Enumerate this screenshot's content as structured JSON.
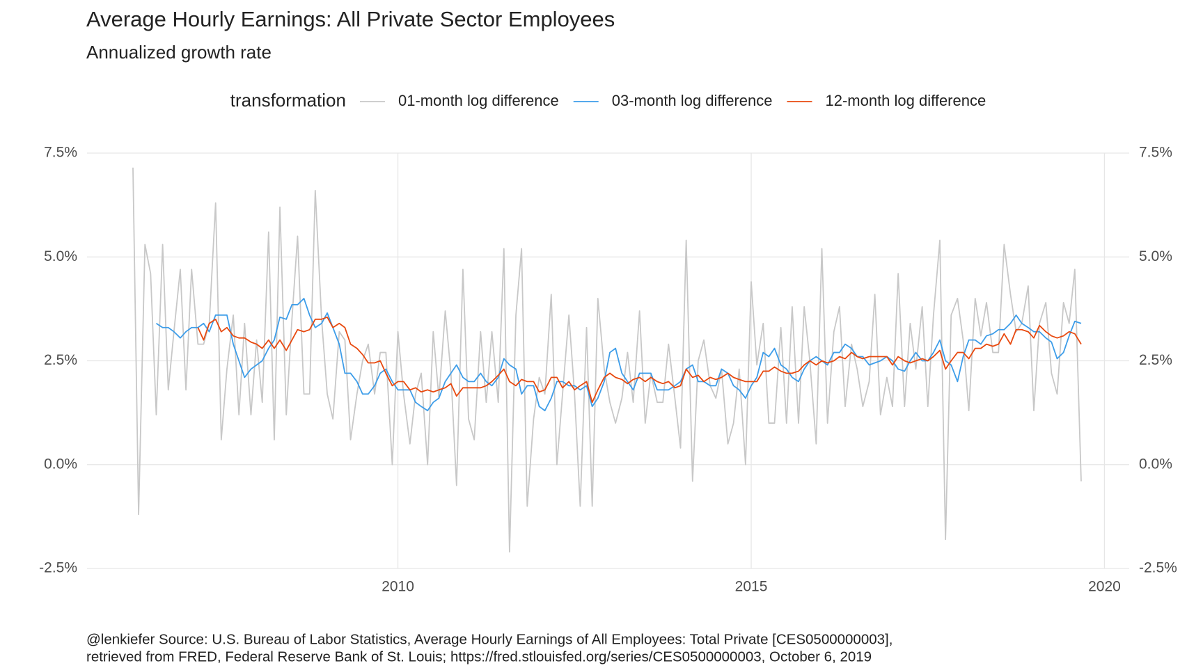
{
  "chart_data": {
    "type": "line",
    "title": "Average Hourly Earnings: All Private Sector Employees",
    "subtitle": "Annualized growth rate",
    "legend_title": "transformation",
    "legend_position": "top",
    "grid": true,
    "caption": [
      "@lenkiefer Source: U.S. Bureau of Labor Statistics, Average Hourly Earnings of All Employees: Total Private [CES0500000003],",
      "retrieved from FRED, Federal Reserve Bank of St. Louis; https://fred.stlouisfed.org/series/CES0500000003, October 6, 2019"
    ],
    "xlim": [
      2005.6,
      2020.35
    ],
    "xticks": [
      2010,
      2015,
      2020
    ],
    "ylim": [
      -2.5,
      7.5
    ],
    "yticks": [
      {
        "value": -2.5,
        "label": "-2.5%"
      },
      {
        "value": 0,
        "label": "0.0%"
      },
      {
        "value": 2.5,
        "label": "2.5%"
      },
      {
        "value": 5,
        "label": "5.0%"
      },
      {
        "value": 7.5,
        "label": "7.5%"
      }
    ],
    "y2lim": [
      -2.5,
      7.5
    ],
    "y2ticks": [
      {
        "value": -2.5,
        "label": "-2.5%"
      },
      {
        "value": 0,
        "label": "0.0%"
      },
      {
        "value": 2.5,
        "label": "2.5%"
      },
      {
        "value": 5,
        "label": "5.0%"
      },
      {
        "value": 7.5,
        "label": "7.5%"
      }
    ],
    "x": [
      2006.25,
      2006.33,
      2006.42,
      2006.5,
      2006.58,
      2006.67,
      2006.75,
      2006.83,
      2006.92,
      2007,
      2007.08,
      2007.17,
      2007.25,
      2007.33,
      2007.42,
      2007.5,
      2007.58,
      2007.67,
      2007.75,
      2007.83,
      2007.92,
      2008,
      2008.08,
      2008.17,
      2008.25,
      2008.33,
      2008.42,
      2008.5,
      2008.58,
      2008.67,
      2008.75,
      2008.83,
      2008.92,
      2009,
      2009.08,
      2009.17,
      2009.25,
      2009.33,
      2009.42,
      2009.5,
      2009.58,
      2009.67,
      2009.75,
      2009.83,
      2009.92,
      2010,
      2010.08,
      2010.17,
      2010.25,
      2010.33,
      2010.42,
      2010.5,
      2010.58,
      2010.67,
      2010.75,
      2010.83,
      2010.92,
      2011,
      2011.08,
      2011.17,
      2011.25,
      2011.33,
      2011.42,
      2011.5,
      2011.58,
      2011.67,
      2011.75,
      2011.83,
      2011.92,
      2012,
      2012.08,
      2012.17,
      2012.25,
      2012.33,
      2012.42,
      2012.5,
      2012.58,
      2012.67,
      2012.75,
      2012.83,
      2012.92,
      2013,
      2013.08,
      2013.17,
      2013.25,
      2013.33,
      2013.42,
      2013.5,
      2013.58,
      2013.67,
      2013.75,
      2013.83,
      2013.92,
      2014,
      2014.08,
      2014.17,
      2014.25,
      2014.33,
      2014.42,
      2014.5,
      2014.58,
      2014.67,
      2014.75,
      2014.83,
      2014.92,
      2015,
      2015.08,
      2015.17,
      2015.25,
      2015.33,
      2015.42,
      2015.5,
      2015.58,
      2015.67,
      2015.75,
      2015.83,
      2015.92,
      2016,
      2016.08,
      2016.17,
      2016.25,
      2016.33,
      2016.42,
      2016.5,
      2016.58,
      2016.67,
      2016.75,
      2016.83,
      2016.92,
      2017,
      2017.08,
      2017.17,
      2017.25,
      2017.33,
      2017.42,
      2017.5,
      2017.58,
      2017.67,
      2017.75,
      2017.83,
      2017.92,
      2018,
      2018.08,
      2018.17,
      2018.25,
      2018.33,
      2018.42,
      2018.5,
      2018.58,
      2018.67,
      2018.75,
      2018.83,
      2018.92,
      2019,
      2019.08,
      2019.17,
      2019.25,
      2019.33,
      2019.42,
      2019.5,
      2019.58,
      2019.67
    ],
    "series": [
      {
        "name": "01-month log difference",
        "color": "#c8c8c8",
        "values": [
          7.15,
          -1.2,
          5.3,
          4.6,
          1.2,
          5.3,
          1.8,
          3.2,
          4.7,
          1.8,
          4.7,
          2.9,
          2.9,
          3.4,
          6.3,
          0.6,
          2.3,
          3.6,
          1.2,
          3.4,
          1.2,
          3.0,
          1.5,
          5.6,
          0.6,
          6.2,
          1.2,
          3.5,
          5.5,
          1.7,
          1.7,
          6.6,
          3.5,
          1.7,
          1.1,
          3.2,
          3.0,
          0.6,
          1.7,
          2.5,
          2.9,
          1.7,
          2.7,
          2.7,
          0.0,
          3.2,
          1.7,
          0.5,
          1.7,
          2.2,
          0.0,
          3.2,
          1.6,
          3.7,
          2.2,
          -0.5,
          4.7,
          1.1,
          0.6,
          3.2,
          1.5,
          3.2,
          1.5,
          5.2,
          -2.1,
          3.6,
          5.2,
          -1.0,
          1.1,
          2.1,
          1.7,
          4.1,
          0.0,
          1.7,
          3.6,
          1.7,
          -1.0,
          3.3,
          -1.0,
          4.0,
          2.3,
          1.5,
          1.0,
          1.6,
          2.7,
          1.5,
          3.7,
          1.0,
          2.2,
          1.5,
          1.5,
          2.9,
          1.6,
          0.4,
          5.4,
          -0.4,
          2.5,
          3.0,
          1.9,
          1.6,
          2.3,
          0.5,
          1.0,
          2.3,
          0.0,
          4.4,
          2.4,
          3.4,
          1.0,
          1.0,
          3.3,
          1.0,
          3.8,
          1.0,
          3.8,
          2.5,
          0.5,
          5.2,
          1.0,
          3.2,
          3.8,
          1.4,
          2.9,
          2.3,
          1.4,
          2.0,
          4.1,
          1.2,
          2.1,
          1.4,
          4.6,
          1.4,
          3.4,
          2.3,
          3.8,
          1.4,
          3.6,
          5.4,
          -1.8,
          3.6,
          4.0,
          3.0,
          1.3,
          4.0,
          3.1,
          3.9,
          2.7,
          2.7,
          5.3,
          4.1,
          3.2,
          3.4,
          4.3,
          1.3,
          3.4,
          3.9,
          2.2,
          1.7,
          3.9,
          3.4,
          4.7,
          -0.4
        ]
      },
      {
        "name": "03-month log difference",
        "color": "#3d9de9",
        "values": [
          null,
          null,
          null,
          null,
          3.4,
          3.3,
          3.3,
          3.2,
          3.05,
          3.2,
          3.3,
          3.3,
          3.4,
          3.2,
          3.6,
          3.6,
          3.6,
          2.9,
          2.5,
          2.1,
          2.3,
          2.4,
          2.5,
          2.8,
          3.0,
          3.55,
          3.5,
          3.85,
          3.85,
          4.0,
          3.6,
          3.3,
          3.4,
          3.65,
          3.3,
          2.9,
          2.2,
          2.2,
          2.0,
          1.7,
          1.7,
          1.9,
          2.2,
          2.3,
          2.0,
          1.8,
          1.8,
          1.8,
          1.5,
          1.4,
          1.3,
          1.5,
          1.6,
          2.0,
          2.2,
          2.4,
          2.1,
          2.0,
          2.0,
          2.2,
          2.0,
          1.9,
          2.1,
          2.55,
          2.4,
          2.3,
          1.7,
          1.9,
          1.9,
          1.4,
          1.3,
          1.6,
          2.0,
          2.0,
          1.9,
          1.9,
          1.8,
          1.9,
          1.4,
          1.6,
          2.0,
          2.7,
          2.8,
          2.2,
          2.0,
          1.8,
          2.2,
          2.2,
          2.2,
          1.8,
          1.8,
          1.8,
          1.9,
          2.0,
          2.3,
          2.4,
          2.0,
          2.0,
          1.9,
          1.9,
          2.3,
          2.2,
          1.9,
          1.8,
          1.6,
          1.9,
          2.1,
          2.7,
          2.6,
          2.8,
          2.4,
          2.3,
          2.1,
          2.0,
          2.3,
          2.5,
          2.6,
          2.5,
          2.4,
          2.7,
          2.7,
          2.9,
          2.8,
          2.6,
          2.6,
          2.4,
          2.45,
          2.5,
          2.6,
          2.5,
          2.3,
          2.25,
          2.5,
          2.7,
          2.5,
          2.5,
          2.7,
          3.0,
          2.5,
          2.4,
          2.0,
          2.6,
          3.0,
          3.0,
          2.9,
          3.1,
          3.15,
          3.25,
          3.25,
          3.4,
          3.6,
          3.4,
          3.3,
          3.2,
          3.2,
          3.05,
          2.95,
          2.55,
          2.7,
          3.1,
          3.45,
          3.4
        ]
      },
      {
        "name": "12-month log difference",
        "color": "#e8490f",
        "values": [
          null,
          null,
          null,
          null,
          null,
          null,
          null,
          null,
          null,
          null,
          null,
          3.3,
          3.0,
          3.4,
          3.5,
          3.2,
          3.3,
          3.1,
          3.05,
          3.05,
          2.95,
          2.9,
          2.8,
          3.0,
          2.8,
          3.0,
          2.75,
          3.0,
          3.25,
          3.2,
          3.25,
          3.5,
          3.5,
          3.55,
          3.3,
          3.4,
          3.3,
          2.9,
          2.8,
          2.65,
          2.45,
          2.45,
          2.5,
          2.2,
          1.9,
          2.0,
          2.0,
          1.8,
          1.85,
          1.75,
          1.8,
          1.75,
          1.8,
          1.85,
          1.95,
          1.65,
          1.85,
          1.85,
          1.85,
          1.85,
          1.9,
          2.0,
          2.15,
          2.3,
          2.0,
          1.9,
          2.05,
          2.0,
          2.0,
          1.75,
          1.8,
          2.1,
          2.1,
          1.85,
          2.0,
          1.8,
          1.9,
          2.0,
          1.5,
          1.8,
          2.1,
          2.2,
          2.1,
          2.05,
          1.95,
          2.05,
          2.1,
          2.0,
          2.1,
          2.0,
          1.95,
          2.0,
          1.85,
          1.9,
          2.3,
          2.1,
          2.15,
          2.0,
          2.1,
          2.05,
          2.1,
          2.2,
          2.1,
          2.05,
          2.0,
          2.0,
          2.0,
          2.25,
          2.25,
          2.35,
          2.25,
          2.2,
          2.2,
          2.25,
          2.4,
          2.5,
          2.4,
          2.5,
          2.45,
          2.5,
          2.6,
          2.55,
          2.7,
          2.6,
          2.55,
          2.6,
          2.6,
          2.6,
          2.6,
          2.4,
          2.6,
          2.5,
          2.45,
          2.5,
          2.55,
          2.5,
          2.6,
          2.75,
          2.3,
          2.5,
          2.7,
          2.7,
          2.55,
          2.8,
          2.8,
          2.9,
          2.85,
          2.9,
          3.15,
          2.9,
          3.25,
          3.25,
          3.2,
          3.05,
          3.35,
          3.2,
          3.1,
          3.05,
          3.1,
          3.2,
          3.15,
          2.9
        ]
      }
    ]
  }
}
